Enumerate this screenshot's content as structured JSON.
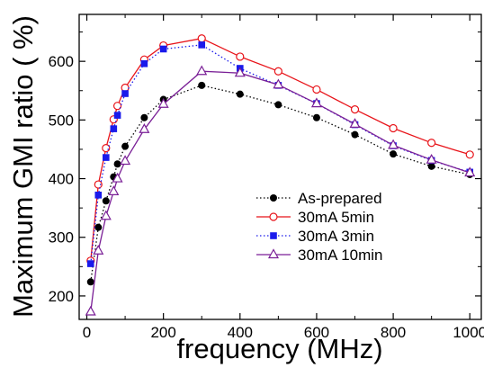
{
  "chart_data": {
    "type": "line",
    "xlabel": "frequency (MHz)",
    "ylabel": "Maximum GMI ratio ( %)",
    "xlim": [
      -20,
      1030
    ],
    "ylim": [
      160,
      680
    ],
    "xticks": [
      0,
      200,
      400,
      600,
      800,
      1000
    ],
    "yticks": [
      200,
      300,
      400,
      500,
      600
    ],
    "x_minor_ticks": [
      100,
      300,
      500,
      700,
      900
    ],
    "y_minor_ticks": [
      250,
      350,
      450,
      550,
      650
    ],
    "grid": false,
    "legend_position": "bottom-right",
    "x": [
      10,
      30,
      50,
      70,
      80,
      100,
      150,
      200,
      300,
      400,
      500,
      600,
      700,
      800,
      900,
      1000
    ],
    "series": [
      {
        "name": "As-prepared",
        "color": "#000000",
        "line_style": "dotted",
        "marker": "filled-circle",
        "values": [
          224,
          317,
          362,
          403,
          425,
          455,
          504,
          535,
          559,
          544,
          526,
          504,
          475,
          442,
          421,
          407
        ]
      },
      {
        "name": "30mA 5min",
        "color": "#e8141a",
        "line_style": "solid",
        "marker": "open-circle",
        "values": [
          260,
          390,
          452,
          501,
          524,
          555,
          603,
          627,
          639,
          608,
          583,
          552,
          518,
          486,
          461,
          441
        ]
      },
      {
        "name": "30mA 3min",
        "color": "#1a1aeb",
        "line_style": "dotted",
        "marker": "filled-square",
        "values": [
          255,
          372,
          436,
          485,
          508,
          545,
          596,
          621,
          628,
          588,
          559,
          528,
          492,
          456,
          431,
          411
        ]
      },
      {
        "name": "30mA 10min",
        "color": "#7a1f96",
        "line_style": "solid",
        "marker": "open-triangle",
        "values": [
          173,
          277,
          336,
          378,
          400,
          430,
          484,
          527,
          583,
          580,
          560,
          528,
          493,
          457,
          432,
          410
        ]
      }
    ]
  }
}
